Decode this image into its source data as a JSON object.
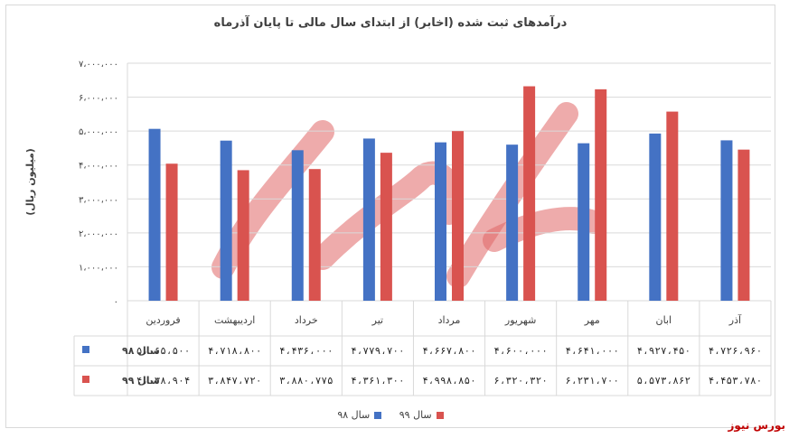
{
  "title": "درآمدهای ثبت شده (اخابر) از ابتدای سال مالی تا پایان آذرماه",
  "source_label": "بورس نیوز",
  "chart_data": {
    "type": "bar",
    "title": "درآمدهای ثبت شده (اخابر) از ابتدای سال مالی تا پایان آذرماه",
    "ylabel": "(میلیون ریال)",
    "ylim": [
      0,
      7000000
    ],
    "yticks": [
      0,
      1000000,
      2000000,
      3000000,
      4000000,
      5000000,
      6000000,
      7000000
    ],
    "ytick_labels": [
      "۰",
      "۱،۰۰۰،۰۰۰",
      "۲،۰۰۰،۰۰۰",
      "۳،۰۰۰،۰۰۰",
      "۴،۰۰۰،۰۰۰",
      "۵،۰۰۰،۰۰۰",
      "۶،۰۰۰،۰۰۰",
      "۷،۰۰۰،۰۰۰"
    ],
    "grid": true,
    "legend_position": "bottom",
    "categories": [
      "فروردین",
      "اردیبهشت",
      "خرداد",
      "تیر",
      "مرداد",
      "شهریور",
      "مهر",
      "ابان",
      "آذر"
    ],
    "series": [
      {
        "name": "سال ۹۸",
        "color": "#4472c4",
        "values": [
          5065500,
          4718800,
          4436000,
          4779700,
          4667800,
          4600000,
          4641000,
          4927450,
          4726960
        ],
        "labels": [
          "۵،۰۶۵،۵۰۰",
          "۴،۷۱۸،۸۰۰",
          "۴،۴۳۶،۰۰۰",
          "۴،۷۷۹،۷۰۰",
          "۴،۶۶۷،۸۰۰",
          "۴،۶۰۰،۰۰۰",
          "۴،۶۴۱،۰۰۰",
          "۴،۹۲۷،۴۵۰",
          "۴،۷۲۶،۹۶۰"
        ]
      },
      {
        "name": "سال ۹۹",
        "color": "#d9534f",
        "values": [
          4038904,
          3847720,
          3880775,
          4361300,
          4998850,
          6320320,
          6231700,
          5573862,
          4453780
        ],
        "labels": [
          "۴،۰۳۸،۹۰۴",
          "۳،۸۴۷،۷۲۰",
          "۳،۸۸۰،۷۷۵",
          "۴،۳۶۱،۳۰۰",
          "۴،۹۹۸،۸۵۰",
          "۶،۳۲۰،۳۲۰",
          "۶،۲۳۱،۷۰۰",
          "۵،۵۷۳،۸۶۲",
          "۴،۴۵۳،۷۸۰"
        ]
      }
    ]
  }
}
